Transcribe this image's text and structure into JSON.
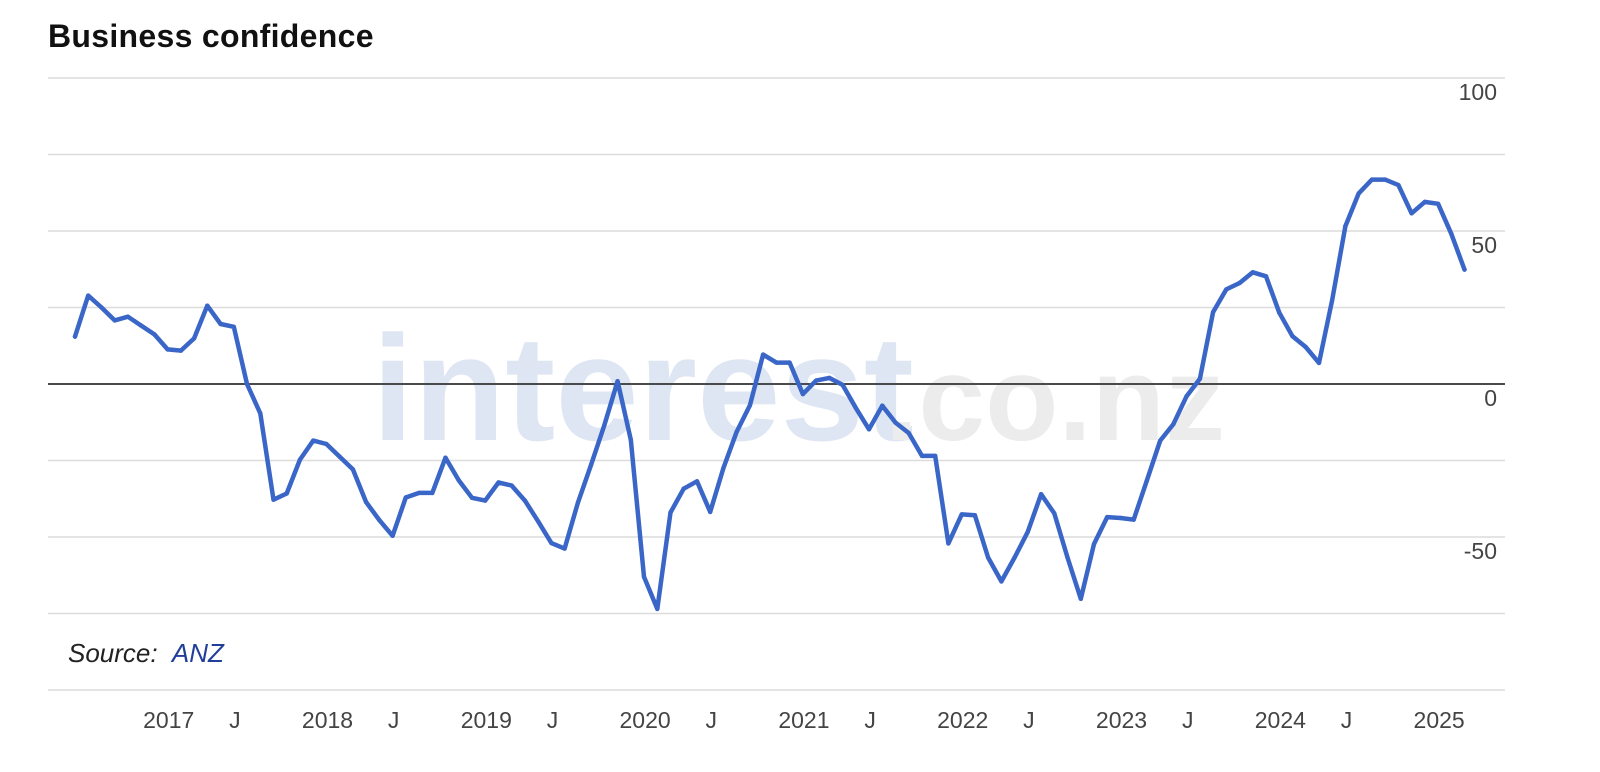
{
  "chart_data": {
    "type": "line",
    "title": "Business confidence",
    "source_label": "Source:",
    "source_name": "ANZ",
    "watermark": {
      "main": "interest",
      "suffix": ".co.nz"
    },
    "y_range": [
      -100,
      100
    ],
    "y_ticks": [
      {
        "value": 100,
        "label": "100"
      },
      {
        "value": 50,
        "label": "50"
      },
      {
        "value": 0,
        "label": "0"
      },
      {
        "value": -50,
        "label": "-50"
      }
    ],
    "y_gridlines": [
      100,
      75,
      50,
      25,
      0,
      -25,
      -50,
      -75,
      -100
    ],
    "zero_line": 0,
    "x_range": [
      "2016-10",
      "2025-09"
    ],
    "x_ticks": [
      {
        "x": "2017-01",
        "label": "2017"
      },
      {
        "x": "2017-06",
        "label": "J"
      },
      {
        "x": "2018-01",
        "label": "2018"
      },
      {
        "x": "2018-06",
        "label": "J"
      },
      {
        "x": "2019-01",
        "label": "2019"
      },
      {
        "x": "2019-06",
        "label": "J"
      },
      {
        "x": "2020-01",
        "label": "2020"
      },
      {
        "x": "2020-06",
        "label": "J"
      },
      {
        "x": "2021-01",
        "label": "2021"
      },
      {
        "x": "2021-06",
        "label": "J"
      },
      {
        "x": "2022-01",
        "label": "2022"
      },
      {
        "x": "2022-06",
        "label": "J"
      },
      {
        "x": "2023-01",
        "label": "2023"
      },
      {
        "x": "2023-06",
        "label": "J"
      },
      {
        "x": "2024-01",
        "label": "2024"
      },
      {
        "x": "2024-06",
        "label": "J"
      },
      {
        "x": "2025-01",
        "label": "2025"
      }
    ],
    "colors": {
      "line": "#3a66c8",
      "zero_line": "#333333",
      "grid": "#dcdcdc",
      "watermark": "#dfe6f3",
      "watermark_suffix": "#ececec",
      "source_link": "#1f3f99"
    },
    "series": [
      {
        "values": [
          [
            "2016-10",
            15.5
          ],
          [
            "2016-11",
            28.9
          ],
          [
            "2016-12",
            25.0
          ],
          [
            "2017-01",
            20.8
          ],
          [
            "2017-02",
            22.0
          ],
          [
            "2017-03",
            19.1
          ],
          [
            "2017-04",
            16.2
          ],
          [
            "2017-05",
            11.3
          ],
          [
            "2017-06",
            10.9
          ],
          [
            "2017-07",
            14.9
          ],
          [
            "2017-08",
            25.6
          ],
          [
            "2017-09",
            19.6
          ],
          [
            "2017-10",
            18.7
          ],
          [
            "2017-11",
            0.0
          ],
          [
            "2017-12",
            -9.6
          ],
          [
            "2018-01",
            -37.8
          ],
          [
            "2018-02",
            -35.8
          ],
          [
            "2018-03",
            -24.7
          ],
          [
            "2018-04",
            -18.5
          ],
          [
            "2018-05",
            -19.6
          ],
          [
            "2018-06",
            -23.8
          ],
          [
            "2018-07",
            -27.9
          ],
          [
            "2018-08",
            -38.6
          ],
          [
            "2018-09",
            -44.5
          ],
          [
            "2018-10",
            -49.6
          ],
          [
            "2018-11",
            -37.1
          ],
          [
            "2018-12",
            -35.6
          ],
          [
            "2019-01",
            -35.6
          ],
          [
            "2019-02",
            -24.1
          ],
          [
            "2019-03",
            -31.5
          ],
          [
            "2019-04",
            -37.2
          ],
          [
            "2019-05",
            -38.1
          ],
          [
            "2019-06",
            -32.2
          ],
          [
            "2019-07",
            -33.2
          ],
          [
            "2019-08",
            -38.1
          ],
          [
            "2019-09",
            -44.9
          ],
          [
            "2019-10",
            -52.0
          ],
          [
            "2019-11",
            -53.8
          ],
          [
            "2019-12",
            -38.8
          ],
          [
            "2020-01",
            -26.4
          ],
          [
            "2020-02",
            -13.5
          ],
          [
            "2020-03",
            0.9
          ],
          [
            "2020-04",
            -18.2
          ],
          [
            "2020-05",
            -63.0
          ],
          [
            "2020-06",
            -73.5
          ],
          [
            "2020-07",
            -42.0
          ],
          [
            "2020-08",
            -34.2
          ],
          [
            "2020-09",
            -31.8
          ],
          [
            "2020-10",
            -41.8
          ],
          [
            "2020-11",
            -27.5
          ],
          [
            "2020-12",
            -15.6
          ],
          [
            "2021-01",
            -7.0
          ],
          [
            "2021-02",
            9.6
          ],
          [
            "2021-03",
            7.0
          ],
          [
            "2021-04",
            7.0
          ],
          [
            "2021-05",
            -3.3
          ],
          [
            "2021-06",
            1.1
          ],
          [
            "2021-07",
            2.0
          ],
          [
            "2021-08",
            -0.3
          ],
          [
            "2021-09",
            -7.8
          ],
          [
            "2021-10",
            -14.8
          ],
          [
            "2021-11",
            -7.1
          ],
          [
            "2021-12",
            -12.6
          ],
          [
            "2022-01",
            -16.0
          ],
          [
            "2022-02",
            -23.5
          ],
          [
            "2022-03",
            -23.5
          ],
          [
            "2022-04",
            -52.1
          ],
          [
            "2022-05",
            -42.6
          ],
          [
            "2022-06",
            -42.9
          ],
          [
            "2022-07",
            -56.7
          ],
          [
            "2022-08",
            -64.5
          ],
          [
            "2022-09",
            -56.7
          ],
          [
            "2022-10",
            -48.3
          ],
          [
            "2022-11",
            -36.0
          ],
          [
            "2022-12",
            -42.3
          ],
          [
            "2023-01",
            -56.7
          ],
          [
            "2023-02",
            -70.2
          ],
          [
            "2023-03",
            -52.3
          ],
          [
            "2023-04",
            -43.5
          ],
          [
            "2023-05",
            -43.8
          ],
          [
            "2023-06",
            -44.3
          ],
          [
            "2023-07",
            -31.5
          ],
          [
            "2023-08",
            -18.5
          ],
          [
            "2023-09",
            -13.1
          ],
          [
            "2023-10",
            -4.0
          ],
          [
            "2023-11",
            1.7
          ],
          [
            "2023-12",
            23.5
          ],
          [
            "2024-01",
            30.9
          ],
          [
            "2024-02",
            33.0
          ],
          [
            "2024-03",
            36.5
          ],
          [
            "2024-04",
            35.2
          ],
          [
            "2024-05",
            23.3
          ],
          [
            "2024-06",
            15.6
          ],
          [
            "2024-07",
            12.1
          ],
          [
            "2024-08",
            6.9
          ],
          [
            "2024-09",
            27.5
          ],
          [
            "2024-10",
            51.6
          ],
          [
            "2024-11",
            62.3
          ],
          [
            "2024-12",
            66.8
          ],
          [
            "2025-01",
            66.8
          ],
          [
            "2025-02",
            65.0
          ],
          [
            "2025-03",
            55.8
          ],
          [
            "2025-04",
            59.5
          ],
          [
            "2025-05",
            58.9
          ],
          [
            "2025-06",
            49.1
          ],
          [
            "2025-07",
            37.4
          ]
        ]
      }
    ]
  }
}
